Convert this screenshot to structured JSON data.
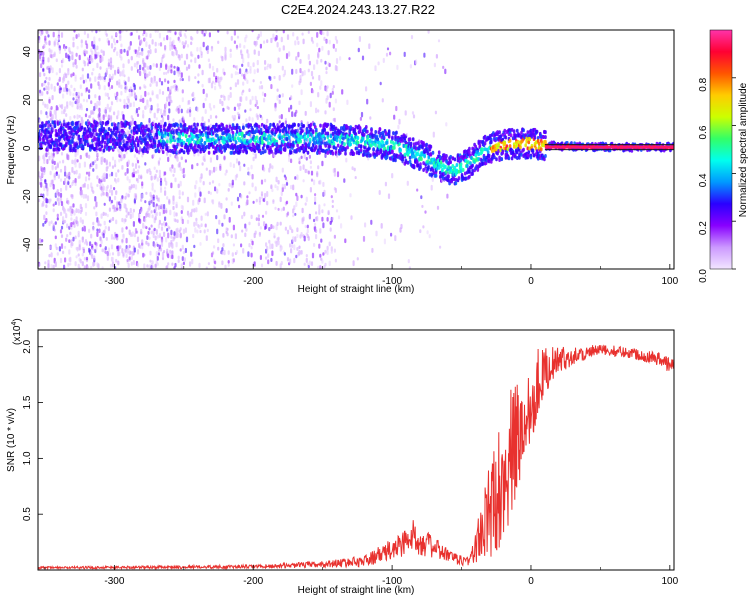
{
  "title": "C2E4.2024.243.13.27.R22",
  "charts": [
    {
      "type": "heatmap",
      "name": "spectrogram",
      "xlabel": "Height of straight line (km)",
      "ylabel": "Frequency (Hz)",
      "xlim": [
        -355,
        103
      ],
      "ylim": [
        -50,
        49
      ],
      "xticks": [
        -300,
        -200,
        -100,
        0,
        100
      ],
      "yticks": [
        -40,
        -20,
        0,
        20,
        40
      ],
      "colorbar": {
        "label": "Normalized spectral amplitude",
        "range": [
          0,
          1
        ],
        "ticks": [
          "0.0",
          "0.2",
          "0.4",
          "0.6",
          "0.8"
        ],
        "tick_values": [
          0.0,
          0.2,
          0.4,
          0.6,
          0.8
        ],
        "colormap": [
          "#f2e6ff",
          "#cc99ff",
          "#8800ff",
          "#2a00ff",
          "#0099ff",
          "#00ffee",
          "#33ff66",
          "#ccff00",
          "#ffcc00",
          "#ff5500",
          "#ff0033",
          "#ff33aa"
        ]
      },
      "ridge": {
        "x": [
          -355,
          -300,
          -250,
          -200,
          -150,
          -120,
          -100,
          -80,
          -65,
          -55,
          -45,
          -35,
          -25,
          -10,
          0,
          10,
          50,
          103
        ],
        "y": [
          5,
          5,
          4,
          4,
          4,
          3,
          1,
          -3,
          -8,
          -9,
          -6,
          -1,
          1,
          2,
          2,
          1,
          0.5,
          0.5
        ]
      },
      "tone_line": {
        "x_start": 10,
        "x_end": 103,
        "y": 0.5
      }
    },
    {
      "type": "line",
      "name": "snr",
      "xlabel": "Height of straight line (km)",
      "ylabel": "SNR (10 * v/v)",
      "y_multiplier": "(x10",
      "y_multiplier_exp": "4",
      "y_multiplier_close": ")",
      "xlim": [
        -355,
        103
      ],
      "ylim": [
        0,
        2.15
      ],
      "xticks": [
        -300,
        -200,
        -100,
        0,
        100
      ],
      "yticks": [
        0.5,
        1.0,
        1.5,
        2.0
      ],
      "ytick_labels": [
        "0.5",
        "1.0",
        "1.5",
        "2.0"
      ],
      "color": "#e8312e",
      "envelope": {
        "x": [
          -355,
          -200,
          -150,
          -120,
          -100,
          -85,
          -70,
          -55,
          -45,
          -40,
          -30,
          -20,
          -12,
          -5,
          0,
          5,
          15,
          30,
          50,
          70,
          90,
          103
        ],
        "mean": [
          0.02,
          0.03,
          0.05,
          0.08,
          0.18,
          0.3,
          0.2,
          0.1,
          0.08,
          0.2,
          0.5,
          0.85,
          1.1,
          1.3,
          1.5,
          1.7,
          1.85,
          1.92,
          1.97,
          1.95,
          1.9,
          1.82
        ],
        "spread": [
          0.01,
          0.015,
          0.03,
          0.05,
          0.1,
          0.15,
          0.1,
          0.05,
          0.05,
          0.15,
          0.45,
          0.6,
          0.6,
          0.45,
          0.4,
          0.3,
          0.15,
          0.08,
          0.05,
          0.05,
          0.06,
          0.08
        ]
      }
    }
  ]
}
